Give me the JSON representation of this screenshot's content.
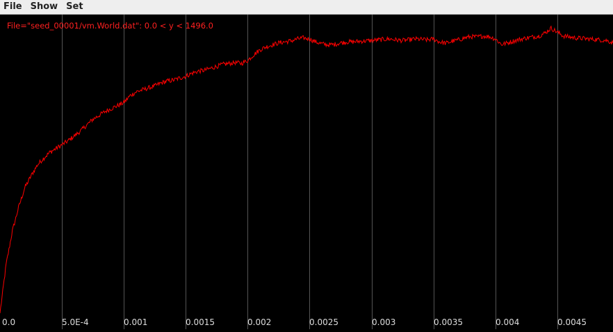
{
  "menu": {
    "items": [
      "File",
      "Show",
      "Set"
    ]
  },
  "chart_data": {
    "type": "line",
    "title": "File=\"seed_00001/vm.World.dat\": 0.0 < y < 1496.0",
    "xlim": [
      0.0,
      0.00495
    ],
    "ylim": [
      0.0,
      1496.0
    ],
    "grid": true,
    "x_ticks": [
      0.0,
      0.0005,
      0.001,
      0.0015,
      0.002,
      0.0025,
      0.003,
      0.0035,
      0.004,
      0.0045
    ],
    "x_tick_labels": [
      "0.0",
      "5.0E-4",
      "0.001",
      "0.0015",
      "0.002",
      "0.0025",
      "0.003",
      "0.0035",
      "0.004",
      "0.0045"
    ],
    "colors": {
      "line": "#ff0000",
      "grid": "#555555",
      "background": "#000000",
      "text": "#ff2020"
    },
    "series": [
      {
        "x": [
          0.0,
          5e-05,
          0.0001,
          0.00015,
          0.0002,
          0.00025,
          0.0003,
          0.00035,
          0.0004,
          0.00045,
          0.0005,
          0.00055,
          0.0006,
          0.00065,
          0.0007,
          0.00075,
          0.0008,
          0.00085,
          0.0009,
          0.00095,
          0.001,
          0.00105,
          0.0011,
          0.00115,
          0.0012,
          0.00125,
          0.0013,
          0.00135,
          0.0014,
          0.00145,
          0.0015,
          0.00155,
          0.0016,
          0.00165,
          0.0017,
          0.00175,
          0.0018,
          0.00185,
          0.0019,
          0.00195,
          0.002,
          0.00205,
          0.0021,
          0.00215,
          0.0022,
          0.00225,
          0.0023,
          0.00235,
          0.0024,
          0.00245,
          0.0025,
          0.00255,
          0.0026,
          0.00265,
          0.0027,
          0.00275,
          0.0028,
          0.00285,
          0.0029,
          0.00295,
          0.003,
          0.00305,
          0.0031,
          0.00315,
          0.0032,
          0.00325,
          0.0033,
          0.00335,
          0.0034,
          0.00345,
          0.0035,
          0.00355,
          0.0036,
          0.00365,
          0.0037,
          0.00375,
          0.0038,
          0.00385,
          0.0039,
          0.00395,
          0.004,
          0.00405,
          0.0041,
          0.00415,
          0.0042,
          0.00425,
          0.0043,
          0.00435,
          0.0044,
          0.00445,
          0.0045,
          0.00455,
          0.0046,
          0.00465,
          0.0047,
          0.00475,
          0.0048,
          0.00485,
          0.0049,
          0.00495
        ],
        "y": [
          0,
          250,
          420,
          540,
          640,
          700,
          755,
          790,
          820,
          840,
          860,
          880,
          905,
          930,
          960,
          990,
          1010,
          1030,
          1045,
          1060,
          1075,
          1110,
          1130,
          1140,
          1150,
          1160,
          1175,
          1185,
          1190,
          1200,
          1210,
          1225,
          1235,
          1240,
          1250,
          1260,
          1270,
          1275,
          1280,
          1275,
          1290,
          1320,
          1345,
          1360,
          1370,
          1380,
          1385,
          1390,
          1400,
          1405,
          1400,
          1385,
          1375,
          1370,
          1372,
          1380,
          1385,
          1385,
          1388,
          1390,
          1392,
          1395,
          1398,
          1400,
          1395,
          1392,
          1395,
          1400,
          1398,
          1395,
          1400,
          1385,
          1378,
          1388,
          1395,
          1405,
          1412,
          1410,
          1415,
          1412,
          1400,
          1372,
          1380,
          1390,
          1398,
          1405,
          1410,
          1415,
          1430,
          1455,
          1435,
          1415,
          1410,
          1405,
          1403,
          1400,
          1398,
          1395,
          1392,
          1380
        ]
      }
    ]
  }
}
